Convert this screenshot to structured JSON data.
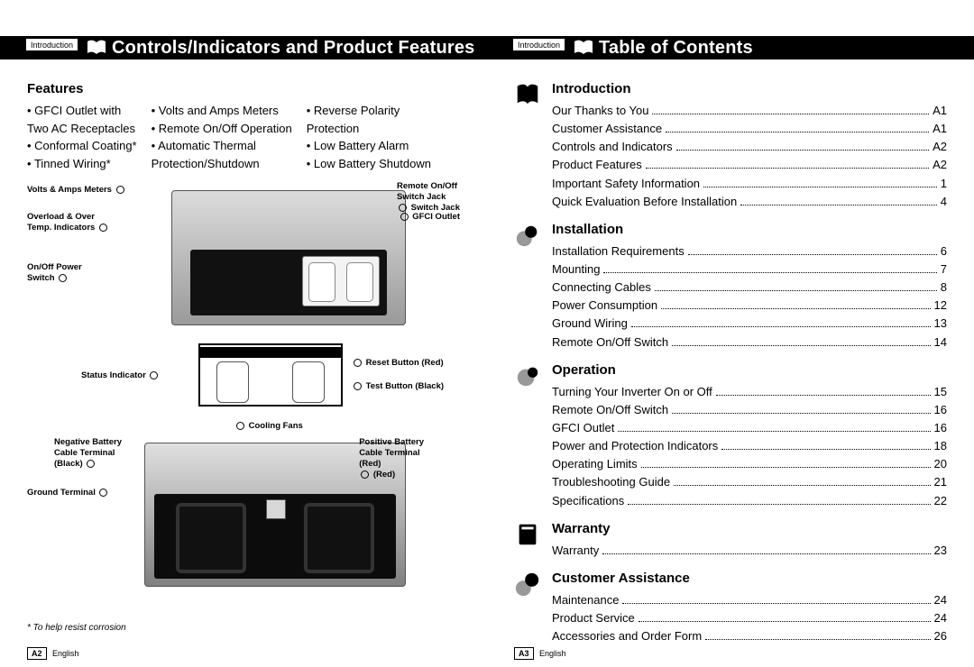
{
  "leftPage": {
    "crumb": "Introduction",
    "headerTitle": "Controls/Indicators and Product Features",
    "featuresHeading": "Features",
    "featureCols": [
      [
        "GFCI Outlet with\nTwo AC Receptacles",
        "Conformal Coating*",
        "Tinned Wiring*"
      ],
      [
        "Volts and Amps Meters",
        "Remote On/Off Operation",
        "Automatic Thermal\nProtection/Shutdown"
      ],
      [
        "Reverse Polarity\nProtection",
        "Low Battery Alarm",
        "Low Battery Shutdown"
      ]
    ],
    "callouts": {
      "voltsAmps": "Volts & Amps Meters",
      "overload": "Overload & Over\nTemp. Indicators",
      "onoff": "On/Off Power\nSwitch",
      "remote": "Remote On/Off\nSwitch Jack",
      "gfci": "GFCI Outlet",
      "status": "Status Indicator",
      "reset": "Reset Button (Red)",
      "test": "Test Button (Black)",
      "cooling": "Cooling Fans",
      "negTerm": "Negative Battery\nCable Terminal\n(Black)",
      "posTerm": "Positive Battery\nCable Terminal\n(Red)",
      "ground": "Ground Terminal"
    },
    "footnote": "*  To help resist corrosion",
    "pageNum": "A2",
    "pageLang": "English"
  },
  "rightPage": {
    "crumb": "Introduction",
    "headerTitle": "Table of Contents",
    "sections": [
      {
        "title": "Introduction",
        "items": [
          {
            "t": "Our Thanks to You",
            "p": "A1"
          },
          {
            "t": "Customer Assistance",
            "p": "A1"
          },
          {
            "t": "Controls and Indicators",
            "p": "A2"
          },
          {
            "t": "Product Features",
            "p": "A2"
          },
          {
            "t": "Important Safety Information",
            "p": "1"
          },
          {
            "t": "Quick Evaluation Before Installation",
            "p": "4"
          }
        ]
      },
      {
        "title": "Installation",
        "items": [
          {
            "t": "Installation Requirements",
            "p": "6"
          },
          {
            "t": "Mounting",
            "p": "7"
          },
          {
            "t": "Connecting Cables",
            "p": "8"
          },
          {
            "t": "Power Consumption",
            "p": "12"
          },
          {
            "t": "Ground Wiring",
            "p": "13"
          },
          {
            "t": "Remote On/Off Switch",
            "p": "14"
          }
        ]
      },
      {
        "title": "Operation",
        "items": [
          {
            "t": "Turning Your Inverter On or Off",
            "p": "15"
          },
          {
            "t": "Remote On/Off Switch",
            "p": "16"
          },
          {
            "t": "GFCI Outlet",
            "p": "16"
          },
          {
            "t": "Power and Protection Indicators",
            "p": "18"
          },
          {
            "t": "Operating Limits",
            "p": "20"
          },
          {
            "t": "Troubleshooting Guide",
            "p": "21"
          },
          {
            "t": "Specifications",
            "p": "22"
          }
        ]
      },
      {
        "title": "Warranty",
        "items": [
          {
            "t": "Warranty",
            "p": "23"
          }
        ]
      },
      {
        "title": "Customer Assistance",
        "items": [
          {
            "t": "Maintenance",
            "p": "24"
          },
          {
            "t": "Product Service",
            "p": "24"
          },
          {
            "t": "Accessories and Order Form",
            "p": "26"
          }
        ]
      }
    ],
    "pageNum": "A3",
    "pageLang": "English"
  },
  "style": {
    "bg": "#ffffff",
    "black": "#000000",
    "grey": "#9a9a9a"
  }
}
